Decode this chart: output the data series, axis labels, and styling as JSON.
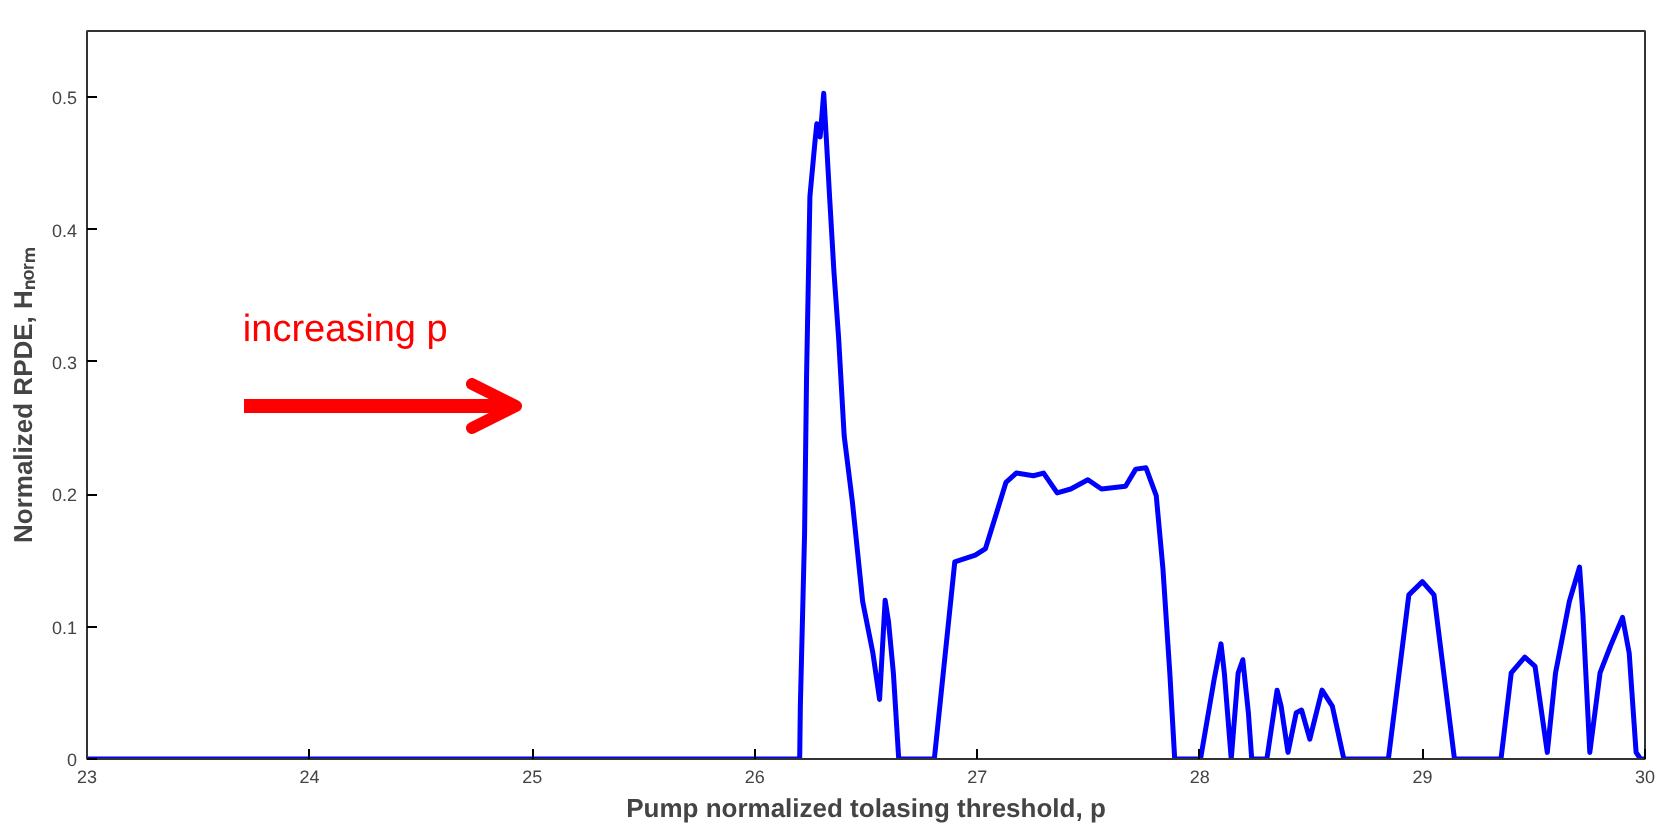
{
  "chart_data": {
    "type": "line",
    "xlabel": "Pump normalized tolasing threshold, p",
    "ylabel": "Normalized RPDE, Hₙₒᵣₘ",
    "annotations": [
      "increasing p"
    ],
    "xlim": [
      23,
      30
    ],
    "ylim": [
      0,
      0.55
    ],
    "xticks": [
      23,
      24,
      25,
      26,
      27,
      28,
      29,
      30
    ],
    "yticks": [
      0,
      0.1,
      0.2,
      0.3,
      0.4,
      0.5
    ],
    "grid": false,
    "line_style": "solid",
    "series": [
      {
        "color": "#0000ff",
        "x": [
          23,
          26.202,
          26.205,
          26.224,
          26.233,
          26.248,
          26.27,
          26.279,
          26.294,
          26.31,
          26.322,
          26.337,
          26.356,
          26.377,
          26.402,
          26.439,
          26.485,
          26.531,
          26.561,
          26.586,
          26.601,
          26.623,
          26.647,
          26.807,
          26.899,
          26.991,
          27.037,
          27.083,
          27.129,
          27.175,
          27.252,
          27.298,
          27.359,
          27.42,
          27.497,
          27.558,
          27.666,
          27.712,
          27.758,
          27.804,
          27.834,
          27.865,
          27.887,
          28.003,
          28.064,
          28.095,
          28.11,
          28.141,
          28.172,
          28.193,
          28.218,
          28.233,
          28.301,
          28.347,
          28.365,
          28.396,
          28.433,
          28.457,
          28.494,
          28.549,
          28.595,
          28.647,
          28.847,
          28.939,
          29.0,
          29.052,
          29.144,
          29.353,
          29.399,
          29.46,
          29.506,
          29.561,
          29.598,
          29.66,
          29.706,
          29.721,
          29.752,
          29.798,
          29.844,
          29.899,
          29.929,
          29.96,
          29.98,
          30
        ],
        "values": [
          0,
          0,
          0.04,
          0.17,
          0.29,
          0.425,
          0.465,
          0.48,
          0.47,
          0.503,
          0.468,
          0.423,
          0.368,
          0.318,
          0.244,
          0.194,
          0.119,
          0.08,
          0.045,
          0.12,
          0.104,
          0.065,
          0,
          0,
          0.149,
          0.154,
          0.159,
          0.184,
          0.209,
          0.216,
          0.214,
          0.216,
          0.201,
          0.204,
          0.211,
          0.204,
          0.206,
          0.219,
          0.22,
          0.199,
          0.144,
          0.065,
          0,
          0,
          0.06,
          0.087,
          0.065,
          0,
          0.065,
          0.075,
          0.035,
          0,
          0,
          0.052,
          0.04,
          0.005,
          0.035,
          0.037,
          0.015,
          0.052,
          0.04,
          0,
          0,
          0.124,
          0.134,
          0.124,
          0,
          0,
          0.065,
          0.077,
          0.07,
          0.005,
          0.065,
          0.119,
          0.145,
          0.109,
          0.005,
          0.065,
          0.085,
          0.107,
          0.08,
          0.005,
          0,
          0
        ]
      }
    ]
  }
}
